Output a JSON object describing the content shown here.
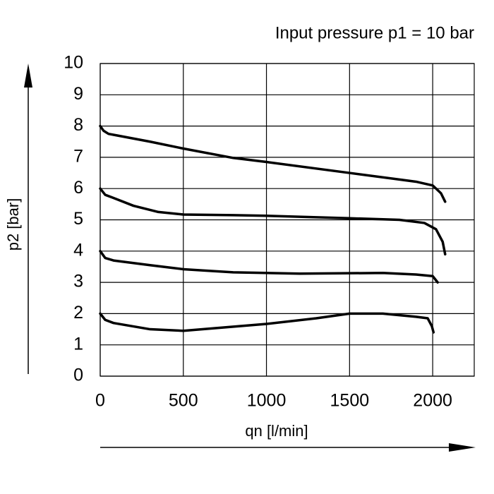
{
  "chart_data": {
    "type": "line",
    "title": "Input pressure p1 = 10 bar",
    "xlabel": "qn [l/min]",
    "ylabel": "p2 [bar]",
    "xlim": [
      0,
      2250
    ],
    "xticks": [
      0,
      500,
      1000,
      1500,
      2000
    ],
    "ylim": [
      0,
      10
    ],
    "yticks": [
      0,
      1,
      2,
      3,
      4,
      5,
      6,
      7,
      8,
      9,
      10
    ],
    "grid": true,
    "series": [
      {
        "color": "#000000",
        "x": [
          0,
          20,
          50,
          100,
          300,
          500,
          800,
          1000,
          1500,
          1900,
          2000,
          2050,
          2075
        ],
        "values": [
          8,
          7.85,
          7.75,
          7.7,
          7.5,
          7.28,
          6.98,
          6.85,
          6.5,
          6.22,
          6.1,
          5.85,
          5.58
        ]
      },
      {
        "color": "#000000",
        "x": [
          0,
          30,
          80,
          200,
          350,
          500,
          800,
          1000,
          1500,
          1800,
          1950,
          2020,
          2060,
          2075
        ],
        "values": [
          6,
          5.8,
          5.7,
          5.45,
          5.25,
          5.17,
          5.15,
          5.13,
          5.05,
          5.0,
          4.9,
          4.7,
          4.3,
          3.9
        ]
      },
      {
        "color": "#000000",
        "x": [
          0,
          30,
          80,
          300,
          500,
          800,
          1200,
          1700,
          1900,
          2000,
          2030
        ],
        "values": [
          4,
          3.78,
          3.7,
          3.55,
          3.42,
          3.32,
          3.28,
          3.3,
          3.25,
          3.2,
          3.0
        ]
      },
      {
        "color": "#000000",
        "x": [
          0,
          30,
          80,
          300,
          500,
          1000,
          1300,
          1500,
          1700,
          1900,
          1970,
          1995,
          2005
        ],
        "values": [
          2,
          1.8,
          1.7,
          1.5,
          1.45,
          1.67,
          1.85,
          2.0,
          2.0,
          1.9,
          1.85,
          1.6,
          1.4
        ]
      }
    ]
  }
}
